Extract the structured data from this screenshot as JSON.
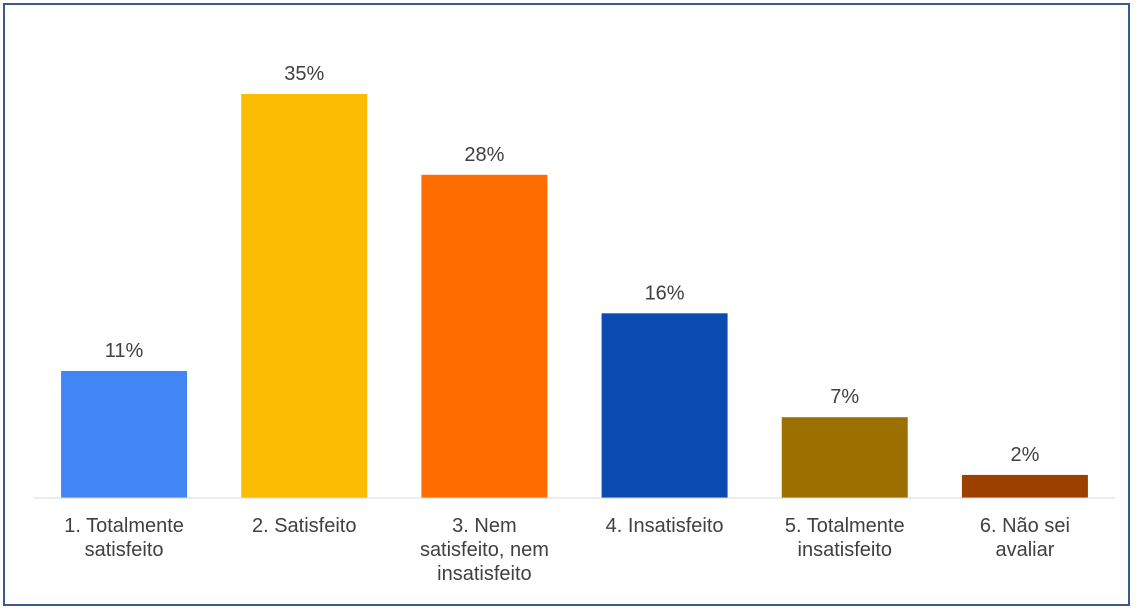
{
  "chart_data": {
    "type": "bar",
    "categories": [
      [
        "1. Totalmente",
        "satisfeito"
      ],
      [
        "2. Satisfeito"
      ],
      [
        "3. Nem",
        "satisfeito, nem",
        "insatisfeito"
      ],
      [
        "4. Insatisfeito"
      ],
      [
        "5. Totalmente",
        "insatisfeito"
      ],
      [
        "6. Não sei",
        "avaliar"
      ]
    ],
    "values": [
      11,
      35,
      28,
      16,
      7,
      2
    ],
    "data_labels": [
      "11%",
      "35%",
      "28%",
      "16%",
      "7%",
      "2%"
    ],
    "colors": [
      "#4285F4",
      "#FBBC04",
      "#FF6D01",
      "#0B4BB0",
      "#9B7000",
      "#9C4000"
    ],
    "title": "",
    "xlabel": "",
    "ylabel": "",
    "ylim": [
      0,
      35
    ],
    "grid": false,
    "legend": "none"
  }
}
